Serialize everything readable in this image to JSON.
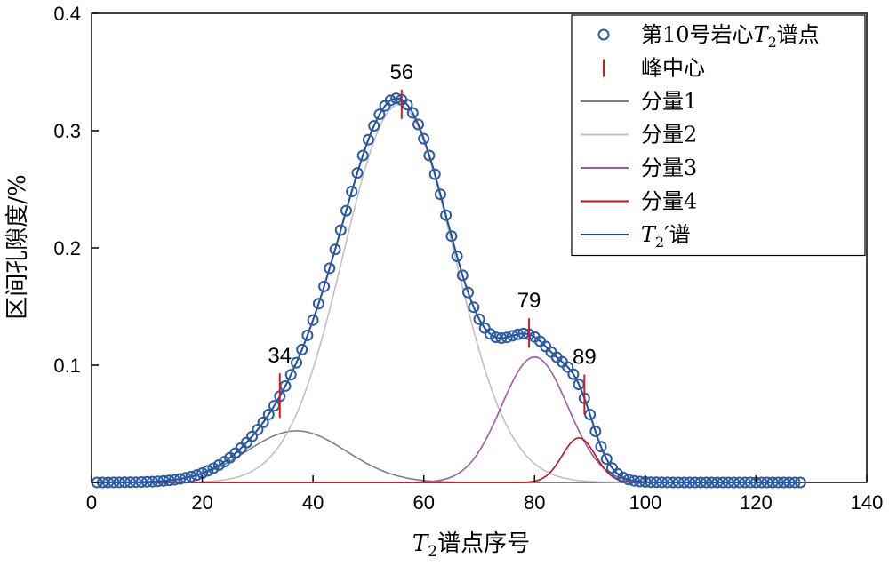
{
  "chart_data": {
    "type": "line",
    "xlabel_var": "T",
    "xlabel_sub": "2",
    "xlabel_rest": "谱点序号",
    "ylabel": "区间孔隙度/%",
    "xlim": [
      0,
      140
    ],
    "ylim": [
      0,
      0.4
    ],
    "x_ticks": [
      "0",
      "20",
      "40",
      "60",
      "80",
      "100",
      "120",
      "140"
    ],
    "y_ticks": [
      "0",
      "0.1",
      "0.2",
      "0.3",
      "0.4"
    ],
    "grid": false,
    "legend_position": "top-right",
    "legend": [
      {
        "key": "spectrum_points",
        "pre": "第10号岩心",
        "var": "T",
        "sub": "2",
        "post": "谱点"
      },
      {
        "key": "peak_center",
        "pre": "峰中心",
        "var": "",
        "sub": "",
        "post": ""
      },
      {
        "key": "component_1",
        "pre": "分量1",
        "var": "",
        "sub": "",
        "post": ""
      },
      {
        "key": "component_2",
        "pre": "分量2",
        "var": "",
        "sub": "",
        "post": ""
      },
      {
        "key": "component_3",
        "pre": "分量3",
        "var": "",
        "sub": "",
        "post": ""
      },
      {
        "key": "component_4",
        "pre": "分量4",
        "var": "",
        "sub": "",
        "post": ""
      },
      {
        "key": "fitted_spectrum",
        "pre": "",
        "var": "T",
        "sub": "2",
        "post": "′谱"
      }
    ],
    "colors": {
      "spectrum_points": "#2a5ba8",
      "peak_center": "#d7191c",
      "component_1": "#7f7f7f",
      "component_2": "#c0c0c0",
      "component_3": "#a05aa5",
      "component_4": "#c0101a",
      "fitted_spectrum": "#1f4e9a"
    },
    "components": [
      {
        "key": "component_1",
        "center": 37,
        "peak": 0.044,
        "width": 9
      },
      {
        "key": "component_2",
        "center": 55.5,
        "peak": 0.322,
        "width": 10
      },
      {
        "key": "component_3",
        "center": 80,
        "peak": 0.107,
        "width": 6
      },
      {
        "key": "component_4",
        "center": 88,
        "peak": 0.038,
        "width": 3
      }
    ],
    "points_x_range": [
      1,
      128
    ],
    "peak_centers": [
      {
        "x": 34,
        "label": "34",
        "y_low": 0.055,
        "y_high": 0.093
      },
      {
        "x": 56,
        "label": "56",
        "y_low": 0.31,
        "y_high": 0.335
      },
      {
        "x": 79,
        "label": "79",
        "y_low": 0.115,
        "y_high": 0.14
      },
      {
        "x": 89,
        "label": "89",
        "y_low": 0.058,
        "y_high": 0.092
      }
    ]
  }
}
